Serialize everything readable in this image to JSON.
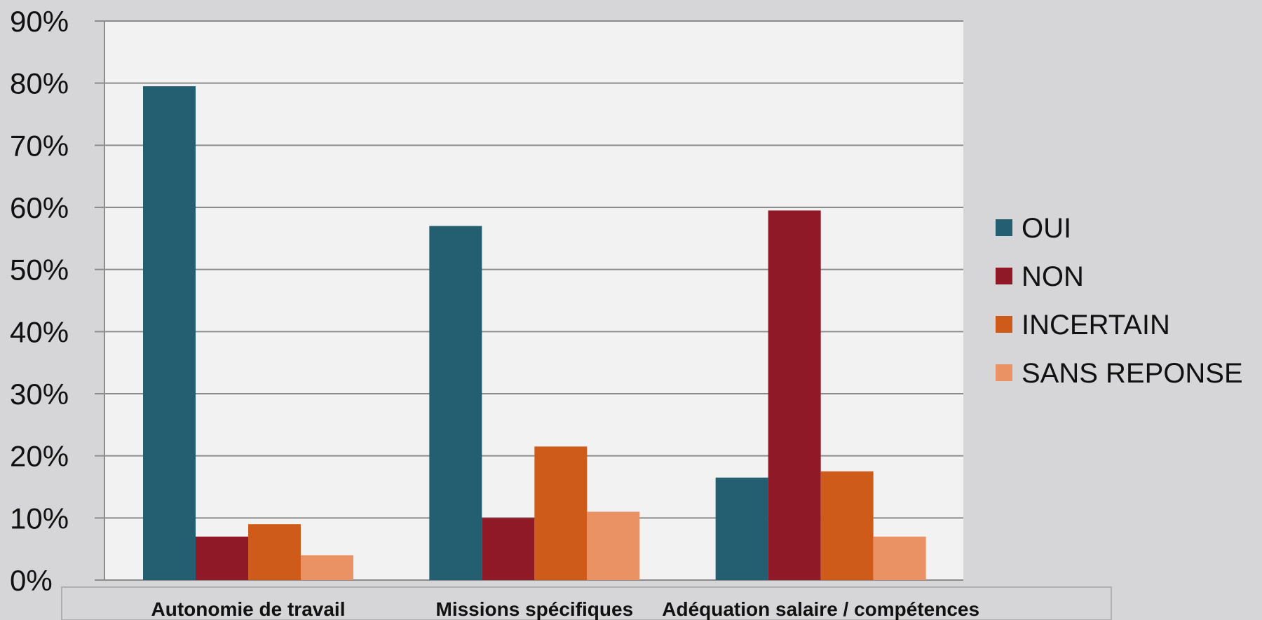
{
  "chart_data": {
    "type": "bar",
    "categories": [
      "Autonomie de travail",
      "Missions spécifiques",
      "Adéquation salaire / compétences"
    ],
    "series": [
      {
        "name": "OUI",
        "values": [
          79.5,
          57,
          16.5
        ],
        "color": "#235f70"
      },
      {
        "name": "NON",
        "values": [
          7,
          10,
          59.5
        ],
        "color": "#8f1927"
      },
      {
        "name": "INCERTAIN",
        "values": [
          9,
          21.5,
          17.5
        ],
        "color": "#cf5b1b"
      },
      {
        "name": "SANS REPONSE",
        "values": [
          4,
          11,
          7
        ],
        "color": "#eb9265"
      }
    ],
    "ylim": [
      0,
      90
    ],
    "yticks": [
      "0%",
      "10%",
      "20%",
      "30%",
      "40%",
      "50%",
      "60%",
      "70%",
      "80%",
      "90%"
    ],
    "grid": true,
    "legend_position": "right",
    "plot_background": "#f2f2f2",
    "page_background": "#d6d6d8",
    "gridline_color": "#8c8c8c"
  }
}
